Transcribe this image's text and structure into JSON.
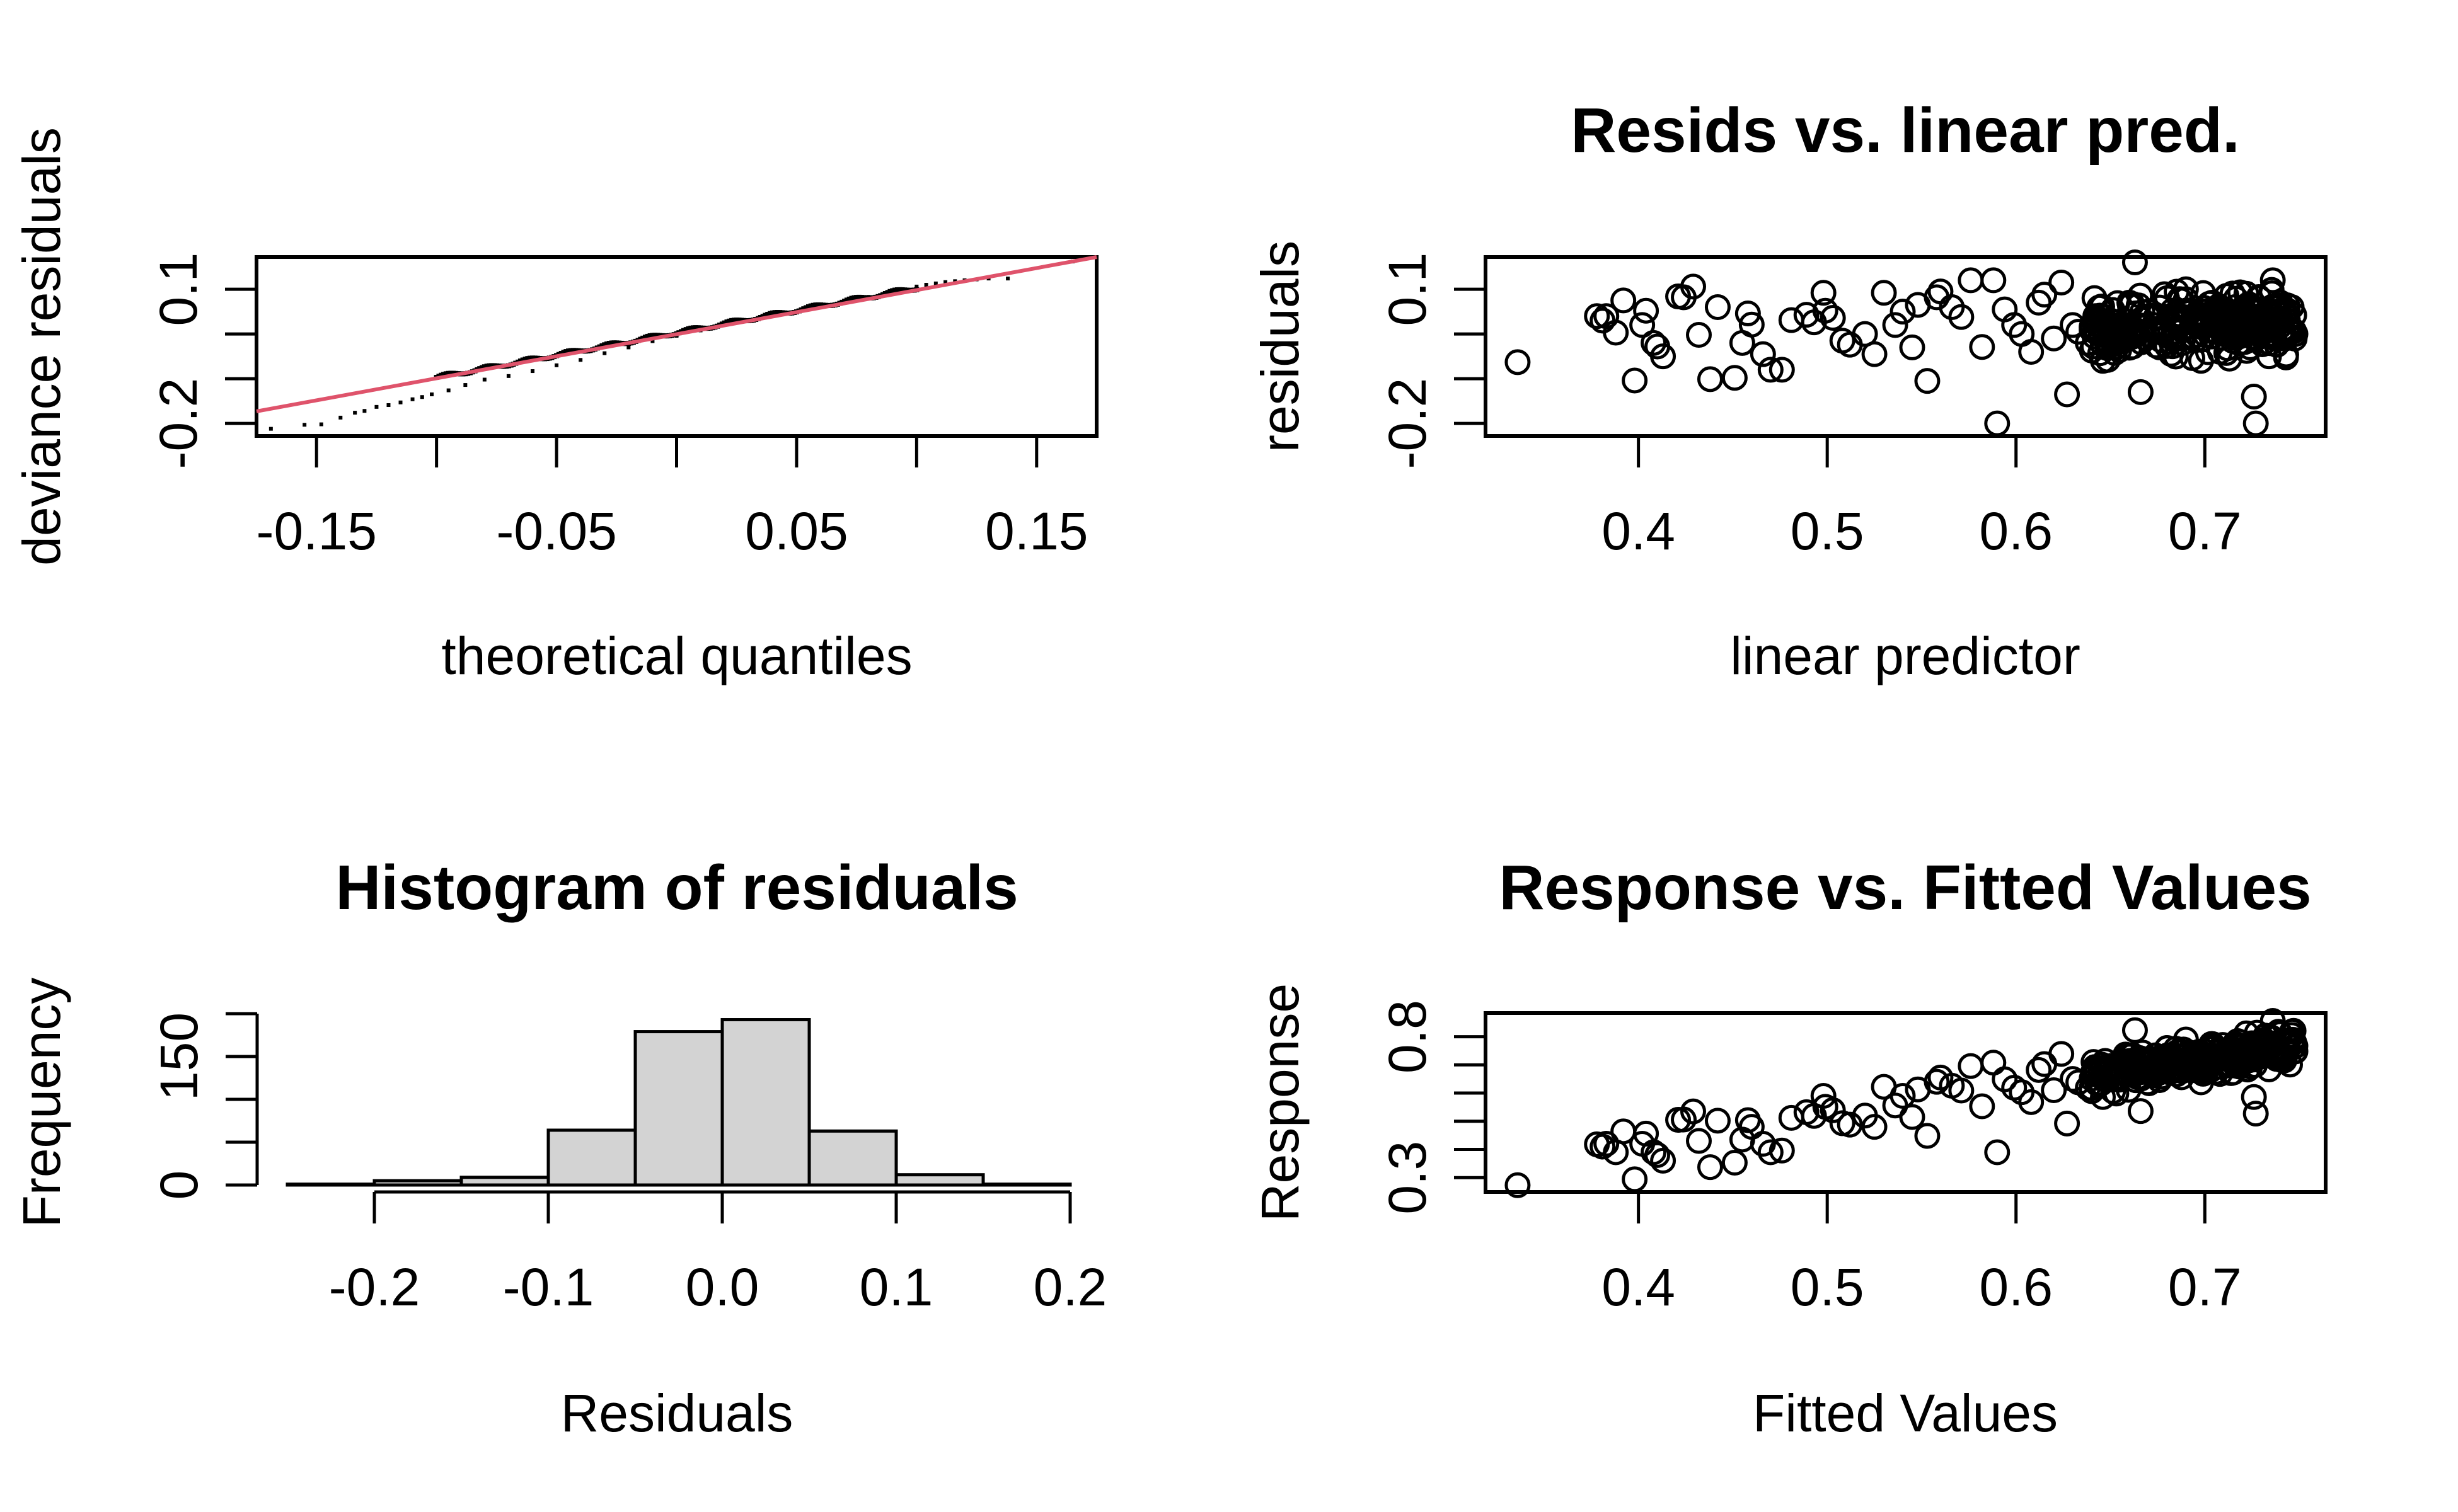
{
  "chart_data": [
    {
      "id": "qq",
      "type": "scatter",
      "title": "",
      "xlabel": "theoretical quantiles",
      "ylabel": "deviance residuals",
      "xlim": [
        -0.175,
        0.175
      ],
      "ylim": [
        -0.228,
        0.172
      ],
      "xticks": [
        -0.15,
        -0.1,
        -0.05,
        0.0,
        0.05,
        0.1,
        0.15
      ],
      "xtick_labels": [
        "-0.15",
        "",
        "-0.05",
        "",
        "0.05",
        "",
        "0.15"
      ],
      "yticks": [
        -0.2,
        -0.1,
        0.0,
        0.1
      ],
      "ytick_labels": [
        "-0.2",
        "",
        "",
        "0.1"
      ],
      "reference_line": {
        "color": "#DF536B",
        "from": [
          -0.175,
          -0.173
        ],
        "to": [
          0.175,
          0.172
        ]
      },
      "points_description": "Sample quantiles vs theoretical quantiles; close to reference line, lower tail below line",
      "points": [
        [
          -0.169,
          -0.212
        ],
        [
          -0.155,
          -0.203
        ],
        [
          -0.148,
          -0.202
        ],
        [
          -0.14,
          -0.187
        ],
        [
          -0.134,
          -0.176
        ],
        [
          -0.13,
          -0.172
        ],
        [
          -0.125,
          -0.163
        ],
        [
          -0.12,
          -0.159
        ],
        [
          -0.115,
          -0.153
        ],
        [
          -0.11,
          -0.146
        ],
        [
          -0.106,
          -0.141
        ],
        [
          -0.102,
          -0.135
        ],
        [
          -0.095,
          -0.126
        ],
        [
          -0.088,
          -0.114
        ],
        [
          -0.08,
          -0.102
        ],
        [
          -0.07,
          -0.094
        ],
        [
          -0.06,
          -0.083
        ],
        [
          -0.05,
          -0.07
        ],
        [
          -0.04,
          -0.058
        ],
        [
          -0.03,
          -0.043
        ],
        [
          -0.02,
          -0.03
        ],
        [
          -0.01,
          -0.016
        ],
        [
          0.0,
          -0.004
        ],
        [
          0.01,
          0.008
        ],
        [
          0.02,
          0.02
        ],
        [
          0.03,
          0.031
        ],
        [
          0.04,
          0.041
        ],
        [
          0.05,
          0.05
        ],
        [
          0.06,
          0.06
        ],
        [
          0.07,
          0.072
        ],
        [
          0.08,
          0.083
        ],
        [
          0.09,
          0.094
        ],
        [
          0.095,
          0.099
        ],
        [
          0.1,
          0.106
        ],
        [
          0.104,
          0.11
        ],
        [
          0.108,
          0.113
        ],
        [
          0.112,
          0.116
        ],
        [
          0.116,
          0.118
        ],
        [
          0.12,
          0.12
        ],
        [
          0.125,
          0.122
        ],
        [
          0.13,
          0.124
        ],
        [
          0.138,
          0.124
        ],
        [
          0.165,
          0.162
        ]
      ]
    },
    {
      "id": "resid_vs_lp",
      "type": "scatter",
      "title": "Resids vs. linear pred.",
      "xlabel": "linear predictor",
      "ylabel": "residuals",
      "xlim": [
        0.319,
        0.764
      ],
      "ylim": [
        -0.228,
        0.172
      ],
      "xticks": [
        0.4,
        0.5,
        0.6,
        0.7
      ],
      "xtick_labels": [
        "0.4",
        "0.5",
        "0.6",
        "0.7"
      ],
      "yticks": [
        -0.2,
        -0.1,
        0.0,
        0.1
      ],
      "ytick_labels": [
        "-0.2",
        "",
        "",
        "0.1"
      ],
      "points": [
        [
          0.336,
          -0.063
        ],
        [
          0.378,
          0.04
        ],
        [
          0.381,
          0.03
        ],
        [
          0.383,
          0.04
        ],
        [
          0.388,
          0.003
        ],
        [
          0.392,
          0.075
        ],
        [
          0.398,
          -0.104
        ],
        [
          0.402,
          0.02
        ],
        [
          0.404,
          0.052
        ],
        [
          0.408,
          -0.02
        ],
        [
          0.41,
          -0.028
        ],
        [
          0.413,
          -0.05
        ],
        [
          0.421,
          0.084
        ],
        [
          0.424,
          0.082
        ],
        [
          0.429,
          0.106
        ],
        [
          0.432,
          -0.002
        ],
        [
          0.438,
          -0.101
        ],
        [
          0.442,
          0.06
        ],
        [
          0.451,
          -0.098
        ],
        [
          0.455,
          -0.02
        ],
        [
          0.458,
          0.046
        ],
        [
          0.46,
          0.021
        ],
        [
          0.466,
          -0.045
        ],
        [
          0.47,
          -0.08
        ],
        [
          0.476,
          -0.08
        ],
        [
          0.481,
          0.031
        ],
        [
          0.489,
          0.043
        ],
        [
          0.493,
          0.026
        ],
        [
          0.498,
          0.092
        ],
        [
          0.499,
          0.052
        ],
        [
          0.503,
          0.036
        ],
        [
          0.508,
          -0.015
        ],
        [
          0.512,
          -0.024
        ],
        [
          0.52,
          0.0
        ],
        [
          0.525,
          -0.045
        ],
        [
          0.53,
          0.092
        ],
        [
          0.536,
          0.02
        ],
        [
          0.54,
          0.05
        ],
        [
          0.545,
          -0.03
        ],
        [
          0.548,
          0.065
        ],
        [
          0.553,
          -0.105
        ],
        [
          0.558,
          0.082
        ],
        [
          0.56,
          0.095
        ],
        [
          0.566,
          0.06
        ],
        [
          0.571,
          0.038
        ],
        [
          0.576,
          0.12
        ],
        [
          0.582,
          -0.029
        ],
        [
          0.588,
          0.12
        ],
        [
          0.59,
          -0.2
        ],
        [
          0.594,
          0.055
        ],
        [
          0.599,
          0.02
        ],
        [
          0.603,
          0.0
        ],
        [
          0.608,
          -0.04
        ],
        [
          0.612,
          0.07
        ],
        [
          0.615,
          0.088
        ],
        [
          0.62,
          -0.01
        ],
        [
          0.624,
          0.115
        ],
        [
          0.627,
          -0.135
        ],
        [
          0.63,
          0.02
        ],
        [
          0.633,
          0.005
        ],
        [
          0.638,
          -0.02
        ],
        [
          0.642,
          0.04
        ],
        [
          0.646,
          -0.06
        ],
        [
          0.65,
          0.03
        ],
        [
          0.655,
          -0.005
        ],
        [
          0.66,
          0.07
        ],
        [
          0.663,
          0.16
        ],
        [
          0.666,
          -0.13
        ],
        [
          0.67,
          0.05
        ],
        [
          0.673,
          0.02
        ],
        [
          0.676,
          -0.03
        ],
        [
          0.68,
          0.08
        ],
        [
          0.684,
          0.03
        ],
        [
          0.688,
          -0.01
        ],
        [
          0.69,
          0.1
        ],
        [
          0.694,
          0.04
        ],
        [
          0.698,
          -0.06
        ],
        [
          0.7,
          0.02
        ],
        [
          0.704,
          0.07
        ],
        [
          0.708,
          -0.04
        ],
        [
          0.712,
          0.01
        ],
        [
          0.716,
          0.06
        ],
        [
          0.718,
          -0.02
        ],
        [
          0.72,
          0.03
        ],
        [
          0.722,
          0.09
        ],
        [
          0.724,
          -0.03
        ],
        [
          0.726,
          -0.14
        ],
        [
          0.727,
          -0.2
        ],
        [
          0.728,
          0.05
        ],
        [
          0.73,
          0.0
        ],
        [
          0.732,
          0.04
        ],
        [
          0.734,
          -0.05
        ],
        [
          0.736,
          0.12
        ],
        [
          0.738,
          0.02
        ],
        [
          0.74,
          0.07
        ],
        [
          0.742,
          -0.01
        ],
        [
          0.744,
          0.03
        ],
        [
          0.746,
          0.06
        ],
        [
          0.748,
          0.0
        ]
      ]
    },
    {
      "id": "hist",
      "type": "bar",
      "title": "Histogram of residuals",
      "xlabel": "Residuals",
      "ylabel": "Frequency",
      "bin_edges": [
        -0.25,
        -0.2,
        -0.15,
        -0.1,
        -0.05,
        0.0,
        0.05,
        0.1,
        0.15,
        0.2
      ],
      "values": [
        1,
        5,
        9,
        64,
        179,
        193,
        63,
        12,
        1
      ],
      "fill": "#D3D3D3",
      "xticks": [
        -0.2,
        -0.1,
        0.0,
        0.1,
        0.2
      ],
      "xtick_labels": [
        "-0.2",
        "-0.1",
        "0.0",
        "0.1",
        "0.2"
      ],
      "yticks": [
        0,
        50,
        100,
        150,
        200
      ],
      "ytick_labels": [
        "0",
        "",
        "",
        "150",
        ""
      ],
      "xlim": [
        -0.268,
        0.218
      ],
      "ylim": [
        -8,
        200
      ]
    },
    {
      "id": "resp_vs_fitted",
      "type": "scatter",
      "title": "Response vs. Fitted Values",
      "xlabel": "Fitted Values",
      "ylabel": "Response",
      "xlim": [
        0.319,
        0.764
      ],
      "ylim": [
        0.249,
        0.884
      ],
      "xticks": [
        0.4,
        0.5,
        0.6,
        0.7
      ],
      "xtick_labels": [
        "0.4",
        "0.5",
        "0.6",
        "0.7"
      ],
      "yticks": [
        0.3,
        0.4,
        0.5,
        0.6,
        0.7,
        0.8
      ],
      "ytick_labels": [
        "0.3",
        "",
        "",
        "",
        "",
        "0.8"
      ],
      "points": [
        [
          0.336,
          0.273
        ],
        [
          0.378,
          0.418
        ],
        [
          0.381,
          0.41
        ],
        [
          0.383,
          0.42
        ],
        [
          0.388,
          0.39
        ],
        [
          0.392,
          0.464
        ],
        [
          0.398,
          0.294
        ],
        [
          0.402,
          0.42
        ],
        [
          0.404,
          0.456
        ],
        [
          0.408,
          0.39
        ],
        [
          0.41,
          0.38
        ],
        [
          0.413,
          0.36
        ],
        [
          0.421,
          0.505
        ],
        [
          0.424,
          0.506
        ],
        [
          0.429,
          0.535
        ],
        [
          0.432,
          0.43
        ],
        [
          0.438,
          0.337
        ],
        [
          0.442,
          0.502
        ],
        [
          0.451,
          0.353
        ],
        [
          0.455,
          0.435
        ],
        [
          0.458,
          0.504
        ],
        [
          0.46,
          0.48
        ],
        [
          0.466,
          0.42
        ],
        [
          0.47,
          0.39
        ],
        [
          0.476,
          0.396
        ],
        [
          0.481,
          0.512
        ],
        [
          0.489,
          0.532
        ],
        [
          0.493,
          0.519
        ],
        [
          0.498,
          0.59
        ],
        [
          0.499,
          0.551
        ],
        [
          0.503,
          0.539
        ],
        [
          0.508,
          0.493
        ],
        [
          0.512,
          0.488
        ],
        [
          0.52,
          0.52
        ],
        [
          0.525,
          0.48
        ],
        [
          0.53,
          0.622
        ],
        [
          0.536,
          0.556
        ],
        [
          0.54,
          0.59
        ],
        [
          0.545,
          0.515
        ],
        [
          0.548,
          0.613
        ],
        [
          0.553,
          0.448
        ],
        [
          0.558,
          0.64
        ],
        [
          0.56,
          0.655
        ],
        [
          0.566,
          0.626
        ],
        [
          0.571,
          0.609
        ],
        [
          0.576,
          0.696
        ],
        [
          0.582,
          0.553
        ],
        [
          0.588,
          0.708
        ],
        [
          0.59,
          0.39
        ],
        [
          0.594,
          0.649
        ],
        [
          0.599,
          0.619
        ],
        [
          0.603,
          0.603
        ],
        [
          0.608,
          0.568
        ],
        [
          0.612,
          0.682
        ],
        [
          0.615,
          0.703
        ],
        [
          0.62,
          0.61
        ],
        [
          0.624,
          0.739
        ],
        [
          0.627,
          0.492
        ],
        [
          0.63,
          0.65
        ],
        [
          0.633,
          0.638
        ],
        [
          0.638,
          0.618
        ],
        [
          0.642,
          0.682
        ],
        [
          0.646,
          0.586
        ],
        [
          0.65,
          0.68
        ],
        [
          0.655,
          0.65
        ],
        [
          0.66,
          0.73
        ],
        [
          0.663,
          0.823
        ],
        [
          0.666,
          0.536
        ],
        [
          0.67,
          0.72
        ],
        [
          0.673,
          0.693
        ],
        [
          0.676,
          0.646
        ],
        [
          0.68,
          0.76
        ],
        [
          0.684,
          0.714
        ],
        [
          0.688,
          0.678
        ],
        [
          0.69,
          0.79
        ],
        [
          0.694,
          0.734
        ],
        [
          0.698,
          0.638
        ],
        [
          0.7,
          0.72
        ],
        [
          0.704,
          0.774
        ],
        [
          0.708,
          0.668
        ],
        [
          0.712,
          0.722
        ],
        [
          0.716,
          0.776
        ],
        [
          0.718,
          0.698
        ],
        [
          0.72,
          0.75
        ],
        [
          0.722,
          0.812
        ],
        [
          0.724,
          0.694
        ],
        [
          0.726,
          0.586
        ],
        [
          0.727,
          0.527
        ],
        [
          0.728,
          0.778
        ],
        [
          0.73,
          0.73
        ],
        [
          0.732,
          0.772
        ],
        [
          0.734,
          0.684
        ],
        [
          0.736,
          0.856
        ],
        [
          0.738,
          0.758
        ],
        [
          0.74,
          0.81
        ],
        [
          0.742,
          0.732
        ],
        [
          0.744,
          0.774
        ],
        [
          0.746,
          0.806
        ],
        [
          0.748,
          0.748
        ]
      ]
    }
  ]
}
